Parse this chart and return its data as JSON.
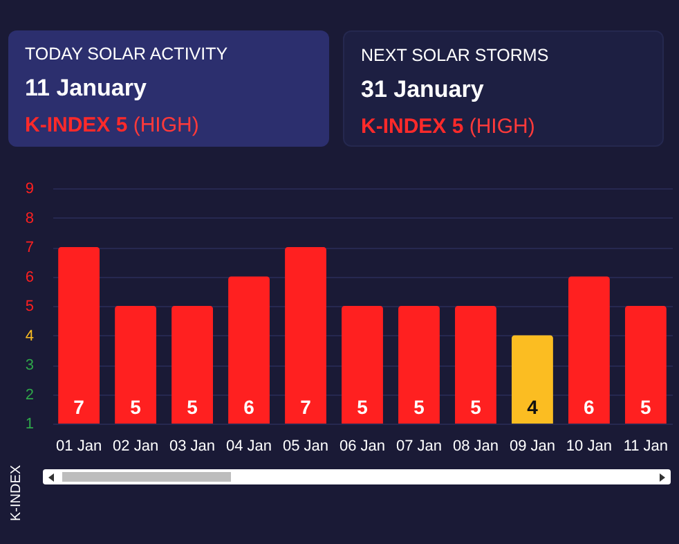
{
  "chart_data": [
    {
      "type": "other",
      "title": "TODAY SOLAR ACTIVITY",
      "subtitle": "11 January",
      "annotations": [
        "K-INDEX 5",
        "(HIGH)"
      ]
    },
    {
      "type": "other",
      "title": "NEXT SOLAR STORMS",
      "subtitle": "31 January",
      "annotations": [
        "K-INDEX 5",
        "(HIGH)"
      ]
    },
    {
      "type": "bar",
      "ylabel": "K-INDEX",
      "categories": [
        "01 Jan",
        "02 Jan",
        "03 Jan",
        "04 Jan",
        "05 Jan",
        "06 Jan",
        "07 Jan",
        "08 Jan",
        "09 Jan",
        "10 Jan",
        "11 Jan"
      ],
      "values": [
        7,
        5,
        5,
        6,
        7,
        5,
        5,
        5,
        4,
        6,
        5
      ],
      "colors": [
        "#ff2020",
        "#ff2020",
        "#ff2020",
        "#ff2020",
        "#ff2020",
        "#ff2020",
        "#ff2020",
        "#ff2020",
        "#fbbd22",
        "#ff2020",
        "#ff2020"
      ],
      "ylim": [
        1,
        9
      ],
      "yticks": [
        1,
        2,
        3,
        4,
        5,
        6,
        7,
        8,
        9
      ],
      "grid": "y",
      "data_labels": true
    }
  ]
}
